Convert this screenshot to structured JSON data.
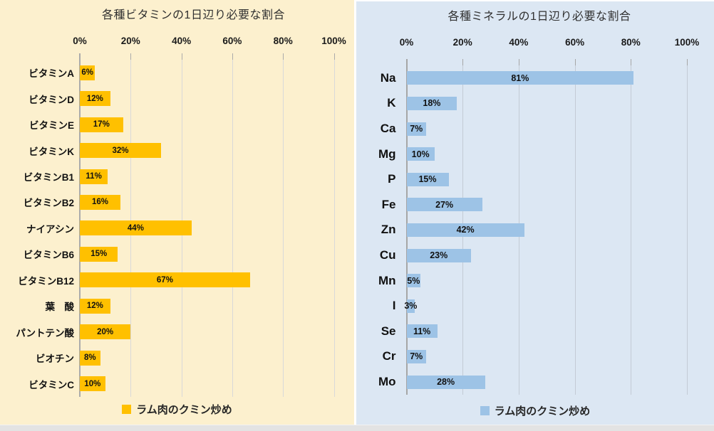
{
  "chart_data": [
    {
      "type": "bar",
      "orientation": "horizontal",
      "title": "各種ビタミンの1日辺り必要な割合",
      "legend": "ラム肉のクミン炒め",
      "legend_position": "bottom",
      "x_ticks": [
        "0%",
        "20%",
        "40%",
        "60%",
        "80%",
        "100%"
      ],
      "xlim": [
        0,
        100
      ],
      "grid": true,
      "categories": [
        "ビタミンA",
        "ビタミンD",
        "ビタミンE",
        "ビタミンK",
        "ビタミンB1",
        "ビタミンB2",
        "ナイアシン",
        "ビタミンB6",
        "ビタミンB12",
        "葉　酸",
        "パントテン酸",
        "ビオチン",
        "ビタミンC"
      ],
      "values": [
        6,
        12,
        17,
        32,
        11,
        16,
        44,
        15,
        67,
        12,
        20,
        8,
        10
      ],
      "value_label_suffix": "%",
      "bar_color": "#FFC000",
      "background": "#FCF0CE",
      "grid_color": "#D9D9D9",
      "axis_color": "#ABABAB"
    },
    {
      "type": "bar",
      "orientation": "horizontal",
      "title": "各種ミネラルの1日辺り必要な割合",
      "legend": "ラム肉のクミン炒め",
      "legend_position": "bottom",
      "x_ticks": [
        "0%",
        "20%",
        "40%",
        "60%",
        "80%",
        "100%"
      ],
      "xlim": [
        0,
        100
      ],
      "grid": true,
      "categories": [
        "Na",
        "K",
        "Ca",
        "Mg",
        "P",
        "Fe",
        "Zn",
        "Cu",
        "Mn",
        "I",
        "Se",
        "Cr",
        "Mo"
      ],
      "values": [
        81,
        18,
        7,
        10,
        15,
        27,
        42,
        23,
        5,
        3,
        11,
        7,
        28
      ],
      "value_label_suffix": "%",
      "bar_color": "#9DC3E6",
      "background": "#DCE7F3",
      "grid_color": "#C3CBD5",
      "axis_color": "#A6A6A6"
    }
  ]
}
